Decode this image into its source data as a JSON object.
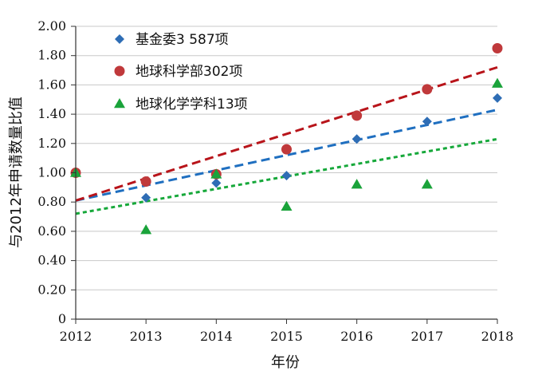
{
  "chart_data": {
    "type": "scatter",
    "title": "",
    "xlabel": "年份",
    "ylabel": "与2012年申请数量比值",
    "x": [
      2012,
      2013,
      2014,
      2015,
      2016,
      2017,
      2018
    ],
    "xlim": [
      2012,
      2018
    ],
    "ylim": [
      0,
      2.0
    ],
    "x_ticks": [
      "2012",
      "2013",
      "2014",
      "2015",
      "2016",
      "2017",
      "2018"
    ],
    "y_ticks": [
      "0",
      "0.20",
      "0.40",
      "0.60",
      "0.80",
      "1.00",
      "1.20",
      "1.40",
      "1.60",
      "1.80",
      "2.00"
    ],
    "grid": "horizontal",
    "legend_position": "top-left",
    "series": [
      {
        "name": "基金委3 587项",
        "marker": "diamond",
        "color": "#2e6db5",
        "trend_color": "#1f6fc0",
        "values": [
          1.0,
          0.83,
          0.93,
          0.98,
          1.23,
          1.35,
          1.51
        ],
        "trend": [
          0.81,
          1.43
        ]
      },
      {
        "name": "地球科学部302项",
        "marker": "circle",
        "color": "#c0393b",
        "trend_color": "#b8141a",
        "values": [
          1.0,
          0.94,
          0.99,
          1.16,
          1.39,
          1.57,
          1.85
        ],
        "trend": [
          0.81,
          1.72
        ]
      },
      {
        "name": "地球化学学科13项",
        "marker": "triangle",
        "color": "#1aa33a",
        "trend_color": "#16a83a",
        "values": [
          1.0,
          0.61,
          0.99,
          0.77,
          0.92,
          0.92,
          1.61
        ],
        "trend": [
          0.72,
          1.23
        ]
      }
    ]
  }
}
